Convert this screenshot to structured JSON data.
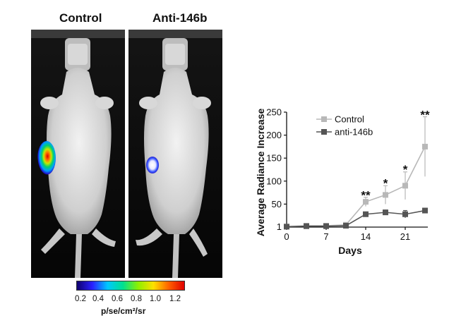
{
  "figure": {
    "panel_control_label": "Control",
    "panel_anti_label": "Anti-146b",
    "colorbar": {
      "ticks": [
        "0.2",
        "0.4",
        "0.6",
        "0.8",
        "1.0",
        "1.2"
      ],
      "unit": "p/se/cm²/sr"
    }
  },
  "colors": {
    "control": "#b8b8b8",
    "anti": "#555555",
    "axis": "#111111"
  },
  "chart_data": {
    "type": "line",
    "xlabel": "Days",
    "ylabel": "Average Radiance Increase",
    "xlim": [
      0,
      25
    ],
    "ylim": [
      0,
      250
    ],
    "xticks": [
      0,
      7,
      14,
      21
    ],
    "yticks": [
      {
        "value": 1,
        "label": "1"
      },
      {
        "value": 50,
        "label": "50"
      },
      {
        "value": 100,
        "label": "100"
      },
      {
        "value": 150,
        "label": "150"
      },
      {
        "value": 200,
        "label": "200"
      },
      {
        "value": 250,
        "label": "250"
      }
    ],
    "legend_position": "top-left",
    "x": [
      0,
      3.5,
      7,
      10.5,
      14,
      17.5,
      21,
      24.5
    ],
    "series": [
      {
        "name": "Control",
        "color": "#b8b8b8",
        "values": [
          1,
          3,
          3,
          5,
          55,
          70,
          90,
          175
        ],
        "errors": [
          2,
          2,
          2,
          3,
          10,
          20,
          30,
          65
        ]
      },
      {
        "name": "anti-146b",
        "color": "#555555",
        "values": [
          1,
          2,
          2,
          3,
          28,
          32,
          28,
          36
        ],
        "errors": [
          1,
          1,
          1,
          2,
          4,
          5,
          8,
          5
        ]
      }
    ],
    "annotations": [
      {
        "x": 14,
        "y": 73,
        "text": "**"
      },
      {
        "x": 17.5,
        "y": 99,
        "text": "*"
      },
      {
        "x": 21,
        "y": 129,
        "text": "*"
      },
      {
        "x": 24.5,
        "y": 248,
        "text": "**"
      }
    ]
  }
}
